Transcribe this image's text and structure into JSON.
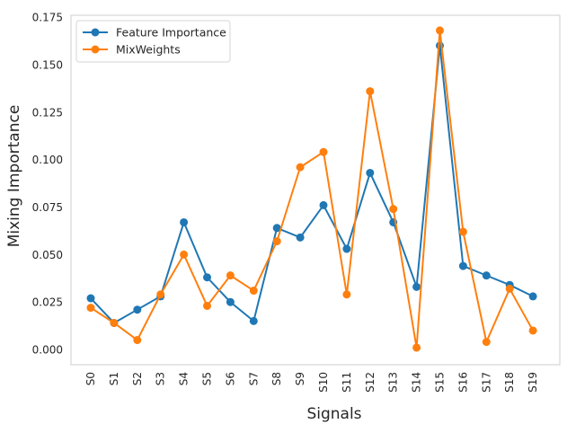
{
  "chart_data": {
    "type": "line",
    "title": "",
    "xlabel": "Signals",
    "ylabel": "Mixing Importance",
    "ylim": [
      -0.008,
      0.176
    ],
    "grid": false,
    "legend_position": "upper-left",
    "categories": [
      "S0",
      "S1",
      "S2",
      "S3",
      "S4",
      "S5",
      "S6",
      "S7",
      "S8",
      "S9",
      "S10",
      "S11",
      "S12",
      "S13",
      "S14",
      "S15",
      "S16",
      "S17",
      "S18",
      "S19"
    ],
    "y_ticks": [
      "0.000",
      "0.025",
      "0.050",
      "0.075",
      "0.100",
      "0.125",
      "0.150",
      "0.175"
    ],
    "y_tick_values": [
      0.0,
      0.025,
      0.05,
      0.075,
      0.1,
      0.125,
      0.15,
      0.175
    ],
    "series": [
      {
        "name": "Feature Importance",
        "color": "#1f77b4",
        "values": [
          0.027,
          0.014,
          0.021,
          0.028,
          0.067,
          0.038,
          0.025,
          0.015,
          0.064,
          0.059,
          0.076,
          0.053,
          0.093,
          0.067,
          0.033,
          0.16,
          0.044,
          0.039,
          0.034,
          0.028
        ]
      },
      {
        "name": "MixWeights",
        "color": "#ff7f0e",
        "values": [
          0.022,
          0.014,
          0.005,
          0.029,
          0.05,
          0.023,
          0.039,
          0.031,
          0.057,
          0.096,
          0.104,
          0.029,
          0.136,
          0.074,
          0.001,
          0.168,
          0.062,
          0.004,
          0.032,
          0.01
        ]
      }
    ]
  }
}
